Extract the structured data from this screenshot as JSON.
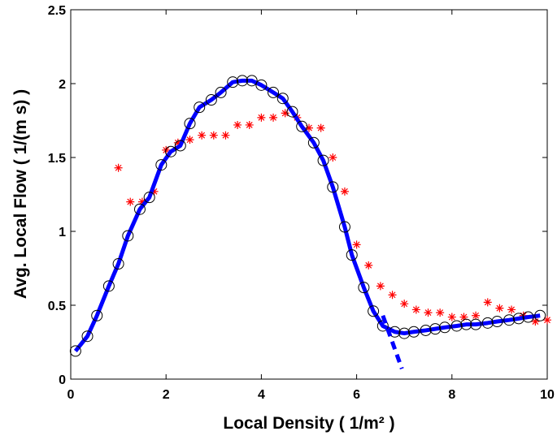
{
  "chart_data": {
    "type": "line",
    "xlabel": "Local Density ( 1/m² )",
    "ylabel": "Avg. Local Flow ( 1/(m s) )",
    "xlim": [
      0,
      10
    ],
    "ylim": [
      0,
      2.5
    ],
    "xticks": [
      0,
      2,
      4,
      6,
      8,
      10
    ],
    "yticks": [
      0,
      0.5,
      1,
      1.5,
      2,
      2.5
    ],
    "series": [
      {
        "color": "#ff0000",
        "marker": "star",
        "line": "none",
        "x": [
          1,
          1.25,
          1.5,
          1.75,
          2,
          2.25,
          2.5,
          2.75,
          3,
          3.25,
          3.5,
          3.75,
          4,
          4.25,
          4.5,
          4.75,
          5,
          5.25,
          5.5,
          5.75,
          6,
          6.25,
          6.5,
          6.75,
          7,
          7.25,
          7.5,
          7.75,
          8,
          8.25,
          8.5,
          8.75,
          9,
          9.25,
          9.5,
          9.75,
          10
        ],
        "values": [
          1.43,
          1.2,
          1.2,
          1.27,
          1.55,
          1.6,
          1.62,
          1.65,
          1.65,
          1.65,
          1.72,
          1.72,
          1.77,
          1.77,
          1.8,
          1.77,
          1.7,
          1.7,
          1.5,
          1.27,
          0.91,
          0.77,
          0.63,
          0.57,
          0.51,
          0.47,
          0.45,
          0.45,
          0.42,
          0.42,
          0.43,
          0.52,
          0.48,
          0.47,
          0.43,
          0.39,
          0.4
        ]
      },
      {
        "color": "#0000ff",
        "marker": "circle",
        "marker_color": "#000000",
        "line": "solid",
        "x": [
          0.1,
          0.35,
          0.55,
          0.8,
          1,
          1.2,
          1.45,
          1.65,
          1.9,
          2.1,
          2.3,
          2.5,
          2.7,
          2.95,
          3.15,
          3.4,
          3.6,
          3.8,
          4,
          4.25,
          4.45,
          4.65,
          4.85,
          5.1,
          5.3,
          5.5,
          5.75,
          5.9,
          6.15,
          6.35,
          6.55,
          6.8,
          7,
          7.2,
          7.45,
          7.65,
          7.85,
          8.1,
          8.3,
          8.5,
          8.75,
          8.95,
          9.2,
          9.4,
          9.6,
          9.85
        ],
        "values": [
          0.19,
          0.29,
          0.43,
          0.63,
          0.78,
          0.97,
          1.15,
          1.23,
          1.45,
          1.54,
          1.58,
          1.73,
          1.84,
          1.89,
          1.94,
          2.01,
          2.02,
          2.02,
          1.99,
          1.94,
          1.9,
          1.81,
          1.71,
          1.6,
          1.48,
          1.3,
          1.03,
          0.84,
          0.62,
          0.46,
          0.36,
          0.32,
          0.31,
          0.32,
          0.33,
          0.34,
          0.35,
          0.36,
          0.37,
          0.37,
          0.38,
          0.39,
          0.4,
          0.41,
          0.42,
          0.43
        ]
      },
      {
        "color": "#0000ff",
        "marker": "none",
        "line": "dashed",
        "x": [
          6.55,
          6.95
        ],
        "values": [
          0.43,
          0.07
        ]
      }
    ]
  }
}
